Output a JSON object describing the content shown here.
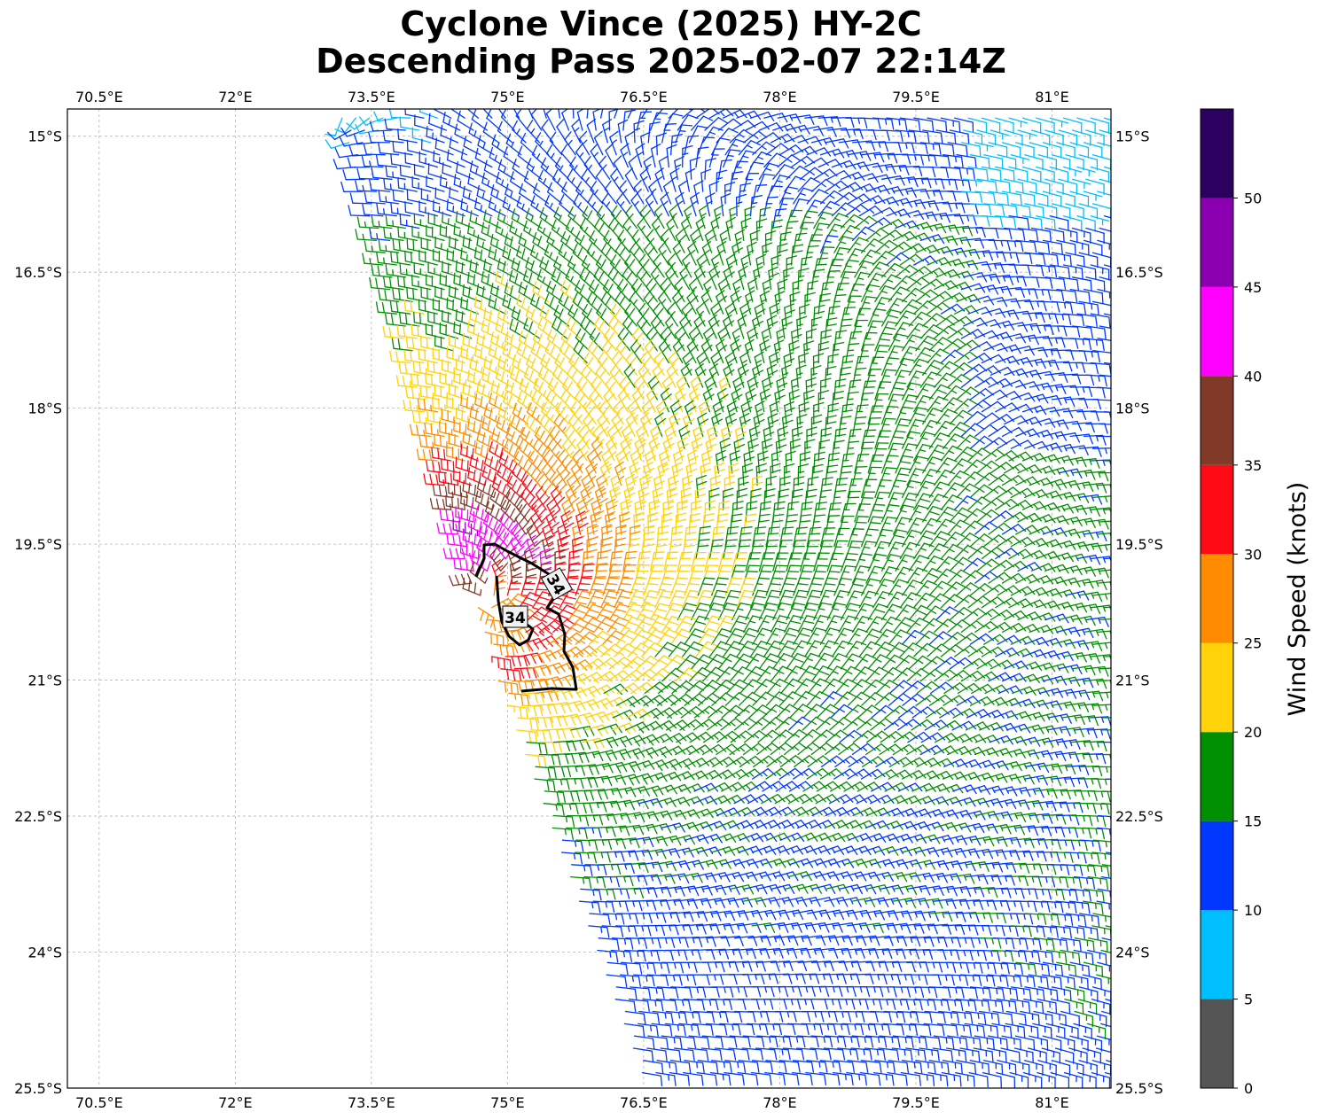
{
  "chart_data": {
    "type": "wind_barbs",
    "title": "Cyclone Vince (2025) HY-2C",
    "subtitle": "Descending Pass 2025-02-07 22:14Z",
    "lon_range": [
      70.15,
      81.65
    ],
    "lat_range": [
      -25.5,
      -14.7
    ],
    "lon_ticks": [
      70.5,
      72,
      73.5,
      75,
      76.5,
      78,
      79.5,
      81
    ],
    "lon_tick_labels": [
      "70.5°E",
      "72°E",
      "73.5°E",
      "75°E",
      "76.5°E",
      "78°E",
      "79.5°E",
      "81°E"
    ],
    "lat_ticks": [
      -15,
      -16.5,
      -18,
      -19.5,
      -21,
      -22.5,
      -24,
      -25.5
    ],
    "lat_tick_labels": [
      "15°S",
      "16.5°S",
      "18°S",
      "19.5°S",
      "21°S",
      "22.5°S",
      "24°S",
      "25.5°S"
    ],
    "grid": true,
    "storm_center_approx": {
      "lon": 74.7,
      "lat": -20.1
    },
    "colorbar": {
      "label": "Wind Speed (knots)",
      "bounds": [
        0,
        5,
        10,
        15,
        20,
        25,
        30,
        35,
        40,
        45,
        50,
        55
      ],
      "tick_values": [
        0,
        5,
        10,
        15,
        20,
        25,
        30,
        35,
        40,
        45,
        50
      ],
      "colors": [
        "#555555",
        "#00bfff",
        "#0038ff",
        "#008f00",
        "#ffd20a",
        "#ff8c00",
        "#ff0a14",
        "#823a28",
        "#ff00ff",
        "#8a00b0",
        "#2c005f"
      ]
    },
    "contour_34kt": {
      "label": "34",
      "labels_shown": 2
    },
    "swath_edge_west": [
      [
        73.15,
        -14.7
      ],
      [
        74.9,
        -21.0
      ],
      [
        76.55,
        -25.5
      ]
    ]
  }
}
